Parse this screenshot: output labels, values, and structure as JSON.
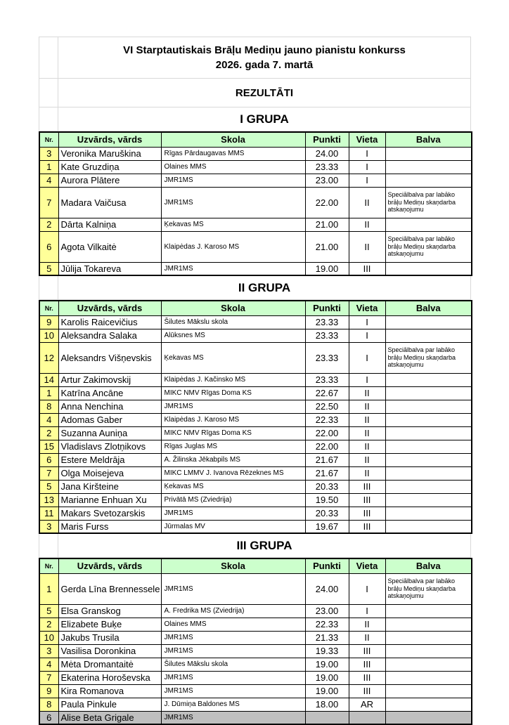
{
  "page": {
    "title_line1": "VI Starptautiskais Brāļu Mediņu jauno pianistu konkurss",
    "title_line2": "2026. gada 7. martā",
    "subtitle": "REZULTĀTI"
  },
  "colors": {
    "header_green": "#ccffcc",
    "number_yellow": "#ffff99",
    "shaded_gray": "#bfbfbf",
    "gridline_gray": "#d9d9d9",
    "table_border": "#000000"
  },
  "columns": [
    "Nr.",
    "Uzvārds, vārds",
    "Skola",
    "Punkti",
    "Vieta",
    "Balva"
  ],
  "special_prize_text": "Speciālbalva par labāko brāļu Mediņu skaņdarba atskaņojumu",
  "groups": [
    {
      "heading": "I GRUPA",
      "rows": [
        {
          "nr": "3",
          "name": "Veronika Maruškina",
          "school": "Rīgas Pārdaugavas MMS",
          "points": "24.00",
          "place": "I",
          "prize": ""
        },
        {
          "nr": "1",
          "name": "Kate Gruzdiņa",
          "school": "Olaines MMS",
          "points": "23.33",
          "place": "I",
          "prize": ""
        },
        {
          "nr": "4",
          "name": "Aurora Plātere",
          "school": "JMR1MS",
          "points": "23.00",
          "place": "I",
          "prize": ""
        },
        {
          "nr": "7",
          "name": "Madara Vaičusa",
          "school": "JMR1MS",
          "points": "22.00",
          "place": "II",
          "prize": "Speciālbalva par labāko brāļu Mediņu skaņdarba atskaņojumu"
        },
        {
          "nr": "2",
          "name": "Dārta Kalniņa",
          "school": "Ķekavas MS",
          "points": "21.00",
          "place": "II",
          "prize": ""
        },
        {
          "nr": "6",
          "name": "Agota Vilkaitė",
          "school": "Klaipėdas J. Karoso MS",
          "points": "21.00",
          "place": "II",
          "prize": "Speciālbalva par labāko brāļu Mediņu skaņdarba atskaņojumu"
        },
        {
          "nr": "5",
          "name": "Jūlija Tokareva",
          "school": "JMR1MS",
          "points": "19.00",
          "place": "III",
          "prize": ""
        }
      ]
    },
    {
      "heading": "II GRUPA",
      "rows": [
        {
          "nr": "9",
          "name": "Karolis Raicevičius",
          "school": "Šilutes Mākslu skola",
          "points": "23.33",
          "place": "I",
          "prize": ""
        },
        {
          "nr": "10",
          "name": "Aleksandra Salaka",
          "school": "Alūksnes MS",
          "points": "23.33",
          "place": "I",
          "prize": ""
        },
        {
          "nr": "12",
          "name": "Aleksandrs Višņevskis",
          "school": "Ķekavas MS",
          "points": "23.33",
          "place": "I",
          "prize": "Speciālbalva par labāko brāļu Mediņu skaņdarba atskaņojumu"
        },
        {
          "nr": "14",
          "name": "Artur Zakimovskij",
          "school": "Klaipėdas J. Kačinsko MS",
          "points": "23.33",
          "place": "I",
          "prize": ""
        },
        {
          "nr": "1",
          "name": "Katrīna Ancāne",
          "school": "MIKC NMV Rīgas Doma KS",
          "points": "22.67",
          "place": "II",
          "prize": ""
        },
        {
          "nr": "8",
          "name": "Anna Nenchina",
          "school": "JMR1MS",
          "points": "22.50",
          "place": "II",
          "prize": ""
        },
        {
          "nr": "4",
          "name": "Adomas Gaber",
          "school": "Klaipėdas J. Karoso MS",
          "points": "22.33",
          "place": "II",
          "prize": ""
        },
        {
          "nr": "2",
          "name": "Suzanna Auniņa",
          "school": "MIKC NMV Rīgas Doma KS",
          "points": "22.00",
          "place": "II",
          "prize": ""
        },
        {
          "nr": "15",
          "name": "Vladislavs Zlotņikovs",
          "school": "Rīgas Juglas MS",
          "points": "22.00",
          "place": "II",
          "prize": ""
        },
        {
          "nr": "6",
          "name": "Estere Meldrāja",
          "school": "A. Žilinska Jēkabpils MS",
          "points": "21.67",
          "place": "II",
          "prize": ""
        },
        {
          "nr": "7",
          "name": "Olga Moisejeva",
          "school": "MIKC LMMV J. Ivanova Rēzeknes MS",
          "points": "21.67",
          "place": "II",
          "prize": ""
        },
        {
          "nr": "5",
          "name": "Jana Kiršteine",
          "school": "Ķekavas MS",
          "points": "20.33",
          "place": "III",
          "prize": ""
        },
        {
          "nr": "13",
          "name": "Marianne Enhuan Xu",
          "school": "Privātā MS (Zviedrija)",
          "points": "19.50",
          "place": "III",
          "prize": ""
        },
        {
          "nr": "11",
          "name": "Makars Svetozarskis",
          "school": "JMR1MS",
          "points": "20.33",
          "place": "III",
          "prize": ""
        },
        {
          "nr": "3",
          "name": "Maris Furss",
          "school": "Jūrmalas MV",
          "points": "19.67",
          "place": "III",
          "prize": ""
        }
      ]
    },
    {
      "heading": "III GRUPA",
      "rows": [
        {
          "nr": "1",
          "name": "Gerda Līna Brennessele",
          "school": "JMR1MS",
          "points": "24.00",
          "place": "I",
          "prize": "Speciālbalva par labāko brāļu Mediņu skaņdarba atskaņojumu"
        },
        {
          "nr": "5",
          "name": "Elsa Granskog",
          "school": "A. Fredrika MS (Zviedrija)",
          "points": "23.00",
          "place": "I",
          "prize": ""
        },
        {
          "nr": "2",
          "name": "Elizabete Buķe",
          "school": "Olaines MMS",
          "points": "22.33",
          "place": "II",
          "prize": ""
        },
        {
          "nr": "10",
          "name": "Jakubs Trusila",
          "school": "JMR1MS",
          "points": "21.33",
          "place": "II",
          "prize": ""
        },
        {
          "nr": "3",
          "name": "Vasilisa Doronkina",
          "school": "JMR1MS",
          "points": "19.33",
          "place": "III",
          "prize": ""
        },
        {
          "nr": "4",
          "name": "Mėta Dromantaitė",
          "school": "Šilutes Mākslu skola",
          "points": "19.00",
          "place": "III",
          "prize": ""
        },
        {
          "nr": "7",
          "name": "Ekaterina Horoševska",
          "school": "JMR1MS",
          "points": "19.00",
          "place": "III",
          "prize": ""
        },
        {
          "nr": "9",
          "name": "Kira Romanova",
          "school": "JMR1MS",
          "points": "19.00",
          "place": "III",
          "prize": ""
        },
        {
          "nr": "8",
          "name": "Paula Pinkule",
          "school": "J. Dūmiņa Baldones MS",
          "points": "18.00",
          "place": "AR",
          "prize": ""
        },
        {
          "nr": "6",
          "name": "Alise Beta Grigale",
          "school": "JMR1MS",
          "points": "",
          "place": "",
          "prize": "",
          "shaded": true
        }
      ]
    }
  ]
}
